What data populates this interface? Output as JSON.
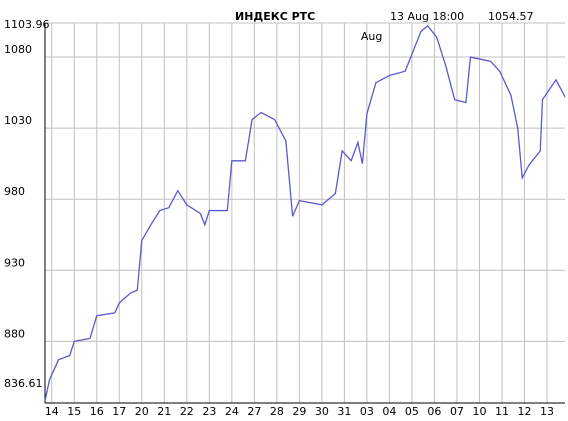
{
  "chart_data": {
    "type": "line",
    "title": "ИНДЕКС   РТС",
    "subtitle": "13 Aug 18:00",
    "last_value": "1054.57",
    "annotation": "Aug",
    "categories": [
      "14",
      "15",
      "16",
      "17",
      "20",
      "21",
      "22",
      "23",
      "24",
      "27",
      "28",
      "29",
      "30",
      "31",
      "03",
      "04",
      "05",
      "06",
      "07",
      "10",
      "11",
      "12",
      "13"
    ],
    "xlim": [
      -0.3,
      22.8
    ],
    "ylim": [
      836.61,
      1103.96
    ],
    "yticks": [
      836.61,
      880,
      930,
      980,
      1030,
      1080,
      1103.96
    ],
    "grid": true,
    "series": [
      {
        "name": "РТС",
        "color": "#5a5acc",
        "x": [
          -0.3,
          -0.1,
          0.3,
          0.8,
          1.0,
          1.7,
          2.0,
          2.8,
          3.0,
          3.5,
          3.8,
          4.0,
          4.4,
          4.8,
          5.2,
          5.6,
          6.0,
          6.6,
          6.8,
          7.0,
          7.8,
          8.0,
          8.6,
          8.9,
          9.3,
          9.9,
          10.4,
          10.7,
          11.0,
          12.0,
          12.6,
          12.9,
          13.3,
          13.6,
          13.8,
          14.0,
          14.4,
          15.0,
          15.7,
          16.4,
          16.7,
          17.1,
          17.5,
          17.9,
          18.4,
          18.6,
          19.5,
          19.9,
          20.4,
          20.7,
          20.9,
          21.2,
          21.7,
          21.8,
          22.4,
          22.8
        ],
        "values": [
          838,
          853,
          867,
          870,
          880,
          882,
          898,
          900,
          907,
          914,
          916,
          951,
          962,
          972,
          974,
          986,
          976,
          970,
          962,
          972,
          972,
          1007,
          1007,
          1036,
          1041,
          1036,
          1021,
          968,
          979,
          976,
          984,
          1014,
          1007,
          1020,
          1005,
          1040,
          1062,
          1067,
          1070,
          1098,
          1102,
          1094,
          1074,
          1050,
          1048,
          1080,
          1077,
          1070,
          1053,
          1030,
          995,
          1004,
          1014,
          1050,
          1064,
          1052
        ]
      }
    ]
  }
}
